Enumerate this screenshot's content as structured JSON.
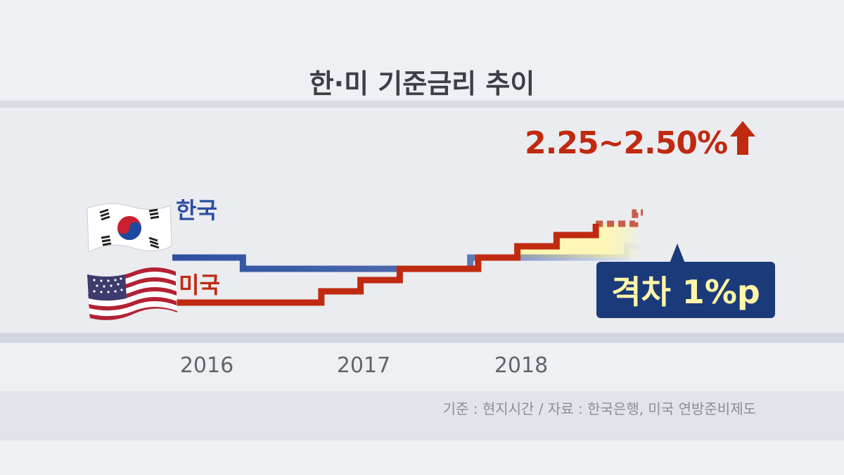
{
  "title": "한·미 기준금리 추이",
  "chart_data": {
    "type": "line",
    "title": "한·미 기준금리 추이",
    "x": [
      "2016",
      "2017",
      "2018"
    ],
    "xlabel": "",
    "ylabel": "",
    "series": [
      {
        "name": "한국",
        "color": "#2d4fa0",
        "points": [
          [
            2016.0,
            1.5
          ],
          [
            2016.45,
            1.25
          ],
          [
            2017.9,
            1.5
          ],
          [
            2018.0,
            1.5
          ],
          [
            2018.9,
            1.75
          ],
          [
            2019.0,
            1.75
          ]
        ]
      },
      {
        "name": "미국",
        "color": "#c02a10",
        "points": [
          [
            2016.0,
            0.5
          ],
          [
            2016.95,
            0.75
          ],
          [
            2017.2,
            1.0
          ],
          [
            2017.45,
            1.25
          ],
          [
            2017.95,
            1.5
          ],
          [
            2018.2,
            1.75
          ],
          [
            2018.45,
            2.0
          ],
          [
            2018.7,
            2.25
          ],
          [
            2018.95,
            2.5
          ],
          [
            2019.0,
            2.5
          ]
        ]
      }
    ],
    "annotations": {
      "us_range": "2.25~2.50%",
      "gap": "격차 1%p"
    }
  },
  "labels": {
    "korea": "한국",
    "usa": "미국"
  },
  "source": "기준 : 현지시간 / 자료 : 한국은행, 미국 연방준비제도",
  "colors": {
    "korea": "#2d4fa0",
    "usa": "#c02a10",
    "gap_box": "#1b3a7a",
    "gap_text": "#fff6a8",
    "highlight": "#fff7b0"
  },
  "icons": {
    "korea_flag": "korea-flag-icon",
    "us_flag": "us-flag-icon",
    "up_arrow": "up-arrow-icon"
  }
}
